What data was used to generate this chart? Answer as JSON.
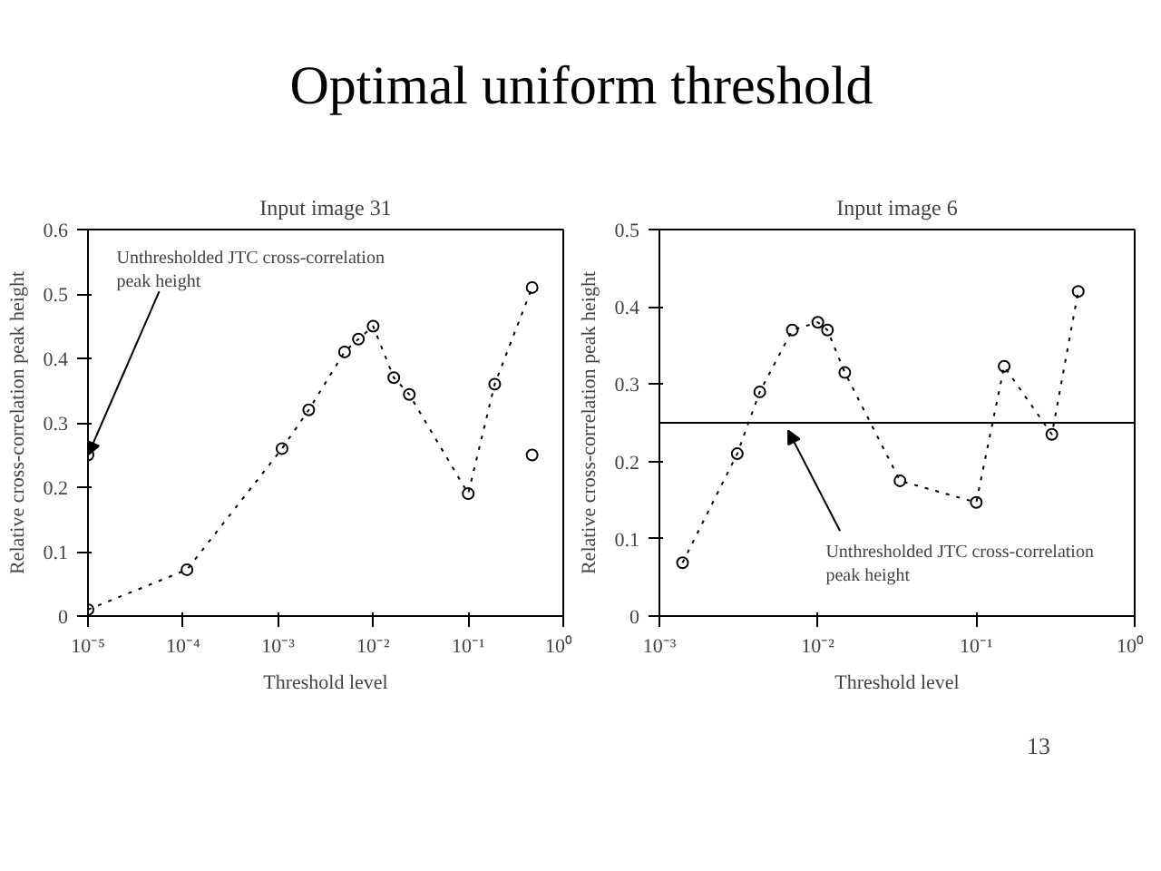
{
  "chart_data": [
    {
      "type": "other",
      "title": "Optimal uniform threshold",
      "annotations": [
        "13"
      ]
    },
    {
      "type": "line",
      "title": "Input image 31",
      "xlabel": "Threshold level",
      "ylabel": "Relative cross-correlation peak height",
      "log": "x",
      "xlim": [
        1e-05,
        1
      ],
      "xticks": [
        {
          "value": 1e-05,
          "label": "10⁻⁵"
        },
        {
          "value": 0.0001,
          "label": "10⁻⁴"
        },
        {
          "value": 0.001,
          "label": "10⁻³"
        },
        {
          "value": 0.01,
          "label": "10⁻²"
        },
        {
          "value": 0.1,
          "label": "10⁻¹"
        },
        {
          "value": 1,
          "label": "10⁰"
        }
      ],
      "ylim": [
        0,
        0.6
      ],
      "yticks": [
        0,
        0.1,
        0.2,
        0.3,
        0.4,
        0.5,
        0.6
      ],
      "grid": false,
      "marker": "circle",
      "line_style": "dotted",
      "series": [
        {
          "color": "#000000",
          "x": [
            1e-05,
            0.00011,
            0.0011,
            0.0021,
            0.005,
            0.007,
            0.01,
            0.0165,
            0.024,
            0.1,
            0.19,
            0.47
          ],
          "values": [
            0.01,
            0.072,
            0.26,
            0.32,
            0.41,
            0.43,
            0.45,
            0.37,
            0.344,
            0.19,
            0.36,
            0.51
          ]
        },
        {
          "type": "scatter",
          "color": "#000000",
          "x": [
            1e-05,
            0.47
          ],
          "values": [
            0.25,
            0.25
          ]
        }
      ],
      "annotations": [
        {
          "text": "Unthresholded JTC cross-correlation peak height",
          "x": 1e-05,
          "y": 0.25
        }
      ]
    },
    {
      "type": "line",
      "title": "Input image 6",
      "xlabel": "Threshold level",
      "ylabel": "Relative cross-correlation peak height",
      "log": "x",
      "xlim": [
        0.001,
        1
      ],
      "xticks": [
        {
          "value": 0.001,
          "label": "10⁻³"
        },
        {
          "value": 0.01,
          "label": "10⁻²"
        },
        {
          "value": 0.1,
          "label": "10⁻¹"
        },
        {
          "value": 1,
          "label": "10⁰"
        }
      ],
      "ylim": [
        0,
        0.5
      ],
      "yticks": [
        0,
        0.1,
        0.2,
        0.3,
        0.4,
        0.5
      ],
      "grid": false,
      "marker": "circle",
      "line_style": "dotted",
      "series": [
        {
          "color": "#000000",
          "x": [
            0.0014,
            0.0031,
            0.0043,
            0.0069,
            0.01,
            0.0115,
            0.0148,
            0.033,
            0.1,
            0.15,
            0.3,
            0.44
          ],
          "values": [
            0.069,
            0.21,
            0.29,
            0.37,
            0.38,
            0.37,
            0.315,
            0.175,
            0.147,
            0.323,
            0.235,
            0.42
          ]
        }
      ],
      "ref_lines": [
        {
          "axis": "y",
          "value": 0.25,
          "color": "#000000",
          "line_style": "solid"
        }
      ],
      "annotations": [
        {
          "text": "Unthresholded JTC cross-correlation peak height",
          "x": 0.0065,
          "y": 0.24
        }
      ]
    }
  ]
}
